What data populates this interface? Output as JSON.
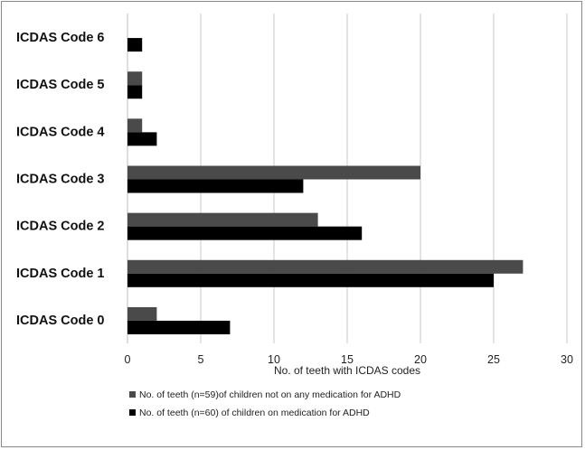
{
  "chart_data": {
    "type": "bar",
    "orientation": "horizontal",
    "categories": [
      "ICDAS Code 6",
      "ICDAS Code 5",
      "ICDAS Code 4",
      "ICDAS Code 3",
      "ICDAS Code 2",
      "ICDAS Code 1",
      "ICDAS Code 0"
    ],
    "series": [
      {
        "name": "No. of teeth (n=59)of children not on any medication for ADHD",
        "color": "#4a4a4a",
        "values": [
          0,
          1,
          1,
          20,
          13,
          27,
          2
        ]
      },
      {
        "name": "No. of teeth (n=60) of children on medication for ADHD",
        "color": "#000000",
        "values": [
          1,
          1,
          2,
          12,
          16,
          25,
          7
        ]
      }
    ],
    "xlabel": "No. of teeth with ICDAS codes",
    "xlim": [
      0,
      30
    ],
    "xticks": [
      "0",
      "5",
      "10",
      "15",
      "20",
      "25",
      "30"
    ],
    "grid": true,
    "legend_position": "bottom"
  }
}
